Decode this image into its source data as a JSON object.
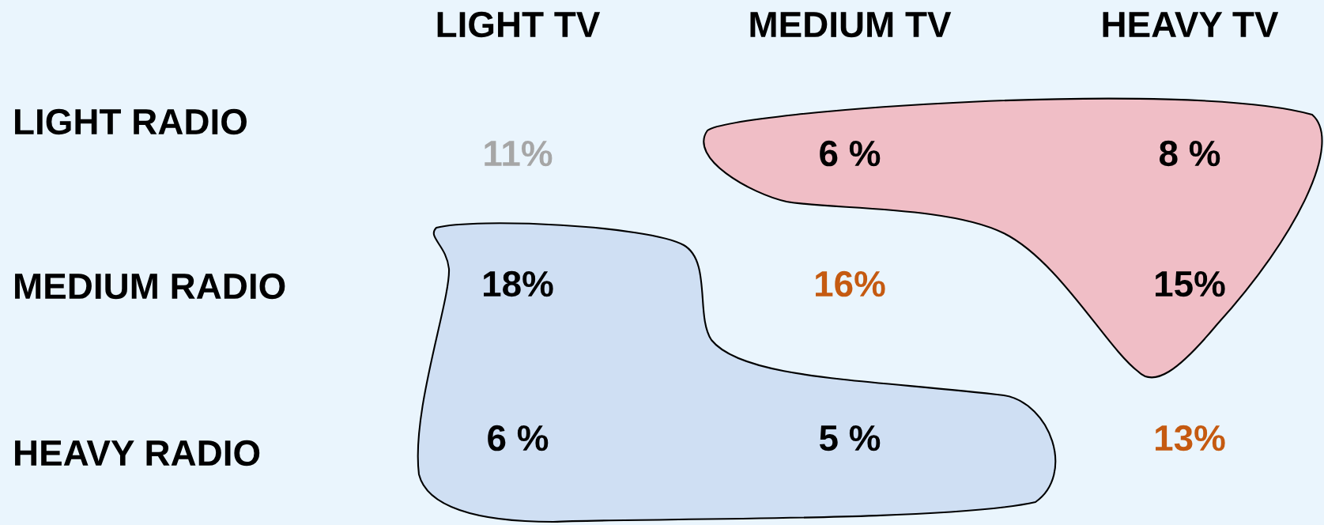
{
  "chart_data": {
    "type": "heatmap",
    "categories": [
      "LIGHT TV",
      "MEDIUM TV",
      "HEAVY TV"
    ],
    "y_categories": [
      "LIGHT RADIO",
      "MEDIUM RADIO",
      "HEAVY RADIO"
    ],
    "cells": [
      [
        11,
        6,
        8
      ],
      [
        18,
        16,
        15
      ],
      [
        6,
        5,
        13
      ]
    ],
    "cell_labels": [
      [
        "11%",
        "6 %",
        "8 %"
      ],
      [
        "18%",
        "16%",
        "15%"
      ],
      [
        "6 %",
        "5 %",
        "13%"
      ]
    ],
    "colors": [
      [
        "#a6a6a6",
        "#000000",
        "#000000"
      ],
      [
        "#000000",
        "#c55a11",
        "#000000"
      ],
      [
        "#000000",
        "#000000",
        "#c55a11"
      ]
    ]
  }
}
